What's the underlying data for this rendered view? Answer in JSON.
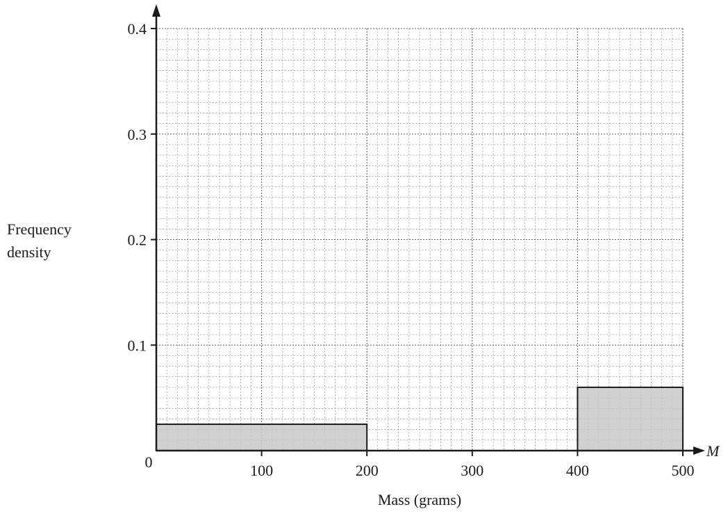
{
  "chart_data": {
    "type": "bar",
    "subtype": "histogram",
    "xlabel": "Mass (grams)",
    "ylabel_lines": [
      "Frequency",
      "density"
    ],
    "x_axis_variable": "M",
    "xlim": [
      0,
      500
    ],
    "ylim": [
      0,
      0.4
    ],
    "x_ticks": [
      100,
      200,
      300,
      400,
      500
    ],
    "y_ticks": [
      0.1,
      0.2,
      0.3,
      0.4
    ],
    "x_tick_labels": [
      "100",
      "200",
      "300",
      "400",
      "500"
    ],
    "y_tick_labels": [
      "0.1",
      "0.2",
      "0.3",
      "0.4"
    ],
    "origin_label": "0",
    "grid": true,
    "grid_minor_x_step": 10,
    "grid_minor_y_step": 0.01,
    "bars": [
      {
        "x_start": 0,
        "x_end": 200,
        "value": 0.025
      },
      {
        "x_start": 400,
        "x_end": 500,
        "value": 0.06
      }
    ],
    "colors": {
      "bar_fill": "#c8c8c8",
      "axis": "#1a1a1a",
      "grid": "#555555"
    }
  }
}
